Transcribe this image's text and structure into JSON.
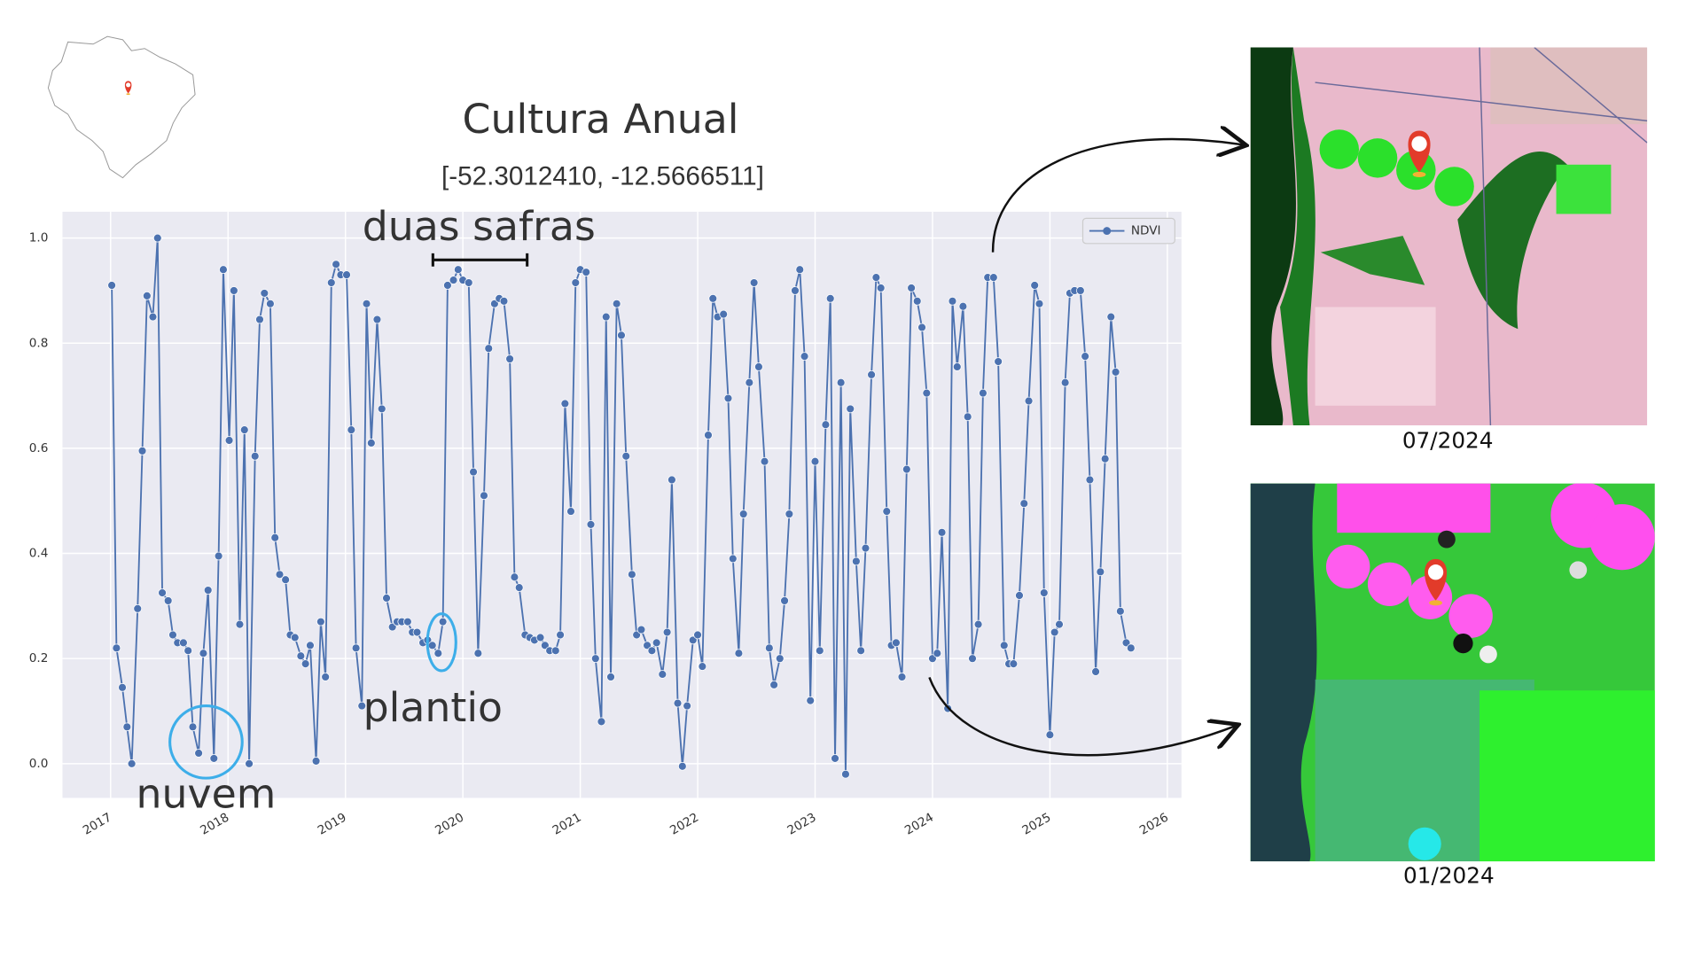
{
  "chart_data": {
    "type": "line",
    "title": "Cultura Anual",
    "subtitle": "[-52.3012410, -12.5666511]",
    "annotations": [
      "duas safras",
      "plantio",
      "nuvem"
    ],
    "image_captions": [
      "07/2024",
      "01/2024"
    ],
    "x": [
      2017.01,
      2017.05,
      2017.1,
      2017.14,
      2017.18,
      2017.23,
      2017.27,
      2017.31,
      2017.36,
      2017.4,
      2017.44,
      2017.49,
      2017.53,
      2017.57,
      2017.62,
      2017.66,
      2017.7,
      2017.75,
      2017.79,
      2017.83,
      2017.88,
      2017.92,
      2017.96,
      2018.01,
      2018.05,
      2018.1,
      2018.14,
      2018.18,
      2018.23,
      2018.27,
      2018.31,
      2018.36,
      2018.4,
      2018.44,
      2018.49,
      2018.53,
      2018.57,
      2018.62,
      2018.66,
      2018.7,
      2018.75,
      2018.79,
      2018.83,
      2018.88,
      2018.92,
      2018.96,
      2019.01,
      2019.05,
      2019.09,
      2019.14,
      2019.18,
      2019.22,
      2019.27,
      2019.31,
      2019.35,
      2019.4,
      2019.44,
      2019.48,
      2019.53,
      2019.57,
      2019.61,
      2019.66,
      2019.7,
      2019.74,
      2019.79,
      2019.83,
      2019.87,
      2019.92,
      2019.96,
      2020.0,
      2020.05,
      2020.09,
      2020.13,
      2020.18,
      2020.22,
      2020.27,
      2020.31,
      2020.35,
      2020.4,
      2020.44,
      2020.48,
      2020.53,
      2020.57,
      2020.61,
      2020.66,
      2020.7,
      2020.74,
      2020.79,
      2020.83,
      2020.87,
      2020.92,
      2020.96,
      2021.0,
      2021.05,
      2021.09,
      2021.13,
      2021.18,
      2021.22,
      2021.26,
      2021.31,
      2021.35,
      2021.39,
      2021.44,
      2021.48,
      2021.52,
      2021.57,
      2021.61,
      2021.65,
      2021.7,
      2021.74,
      2021.78,
      2021.83,
      2021.87,
      2021.91,
      2021.96,
      2022.0,
      2022.04,
      2022.09,
      2022.13,
      2022.17,
      2022.22,
      2022.26,
      2022.3,
      2022.35,
      2022.39,
      2022.44,
      2022.48,
      2022.52,
      2022.57,
      2022.61,
      2022.65,
      2022.7,
      2022.74,
      2022.78,
      2022.83,
      2022.87,
      2022.91,
      2022.96,
      2023.0,
      2023.04,
      2023.09,
      2023.13,
      2023.17,
      2023.22,
      2023.26,
      2023.3,
      2023.35,
      2023.39,
      2023.43,
      2023.48,
      2023.52,
      2023.56,
      2023.61,
      2023.65,
      2023.69,
      2023.74,
      2023.78,
      2023.82,
      2023.87,
      2023.91,
      2023.95,
      2024.0,
      2024.04,
      2024.08,
      2024.13,
      2024.17,
      2024.21,
      2024.26,
      2024.3,
      2024.34,
      2024.39,
      2024.43,
      2024.47,
      2024.52,
      2024.56,
      2024.61,
      2024.65,
      2024.69,
      2024.74,
      2024.78,
      2024.82,
      2024.87,
      2024.91,
      2024.95,
      2025.0,
      2025.04,
      2025.08,
      2025.13,
      2025.17,
      2025.21,
      2025.26,
      2025.3,
      2025.34,
      2025.39,
      2025.43,
      2025.47,
      2025.52,
      2025.56,
      2025.6,
      2025.65,
      2025.69
    ],
    "series": [
      {
        "name": "NDVI",
        "color": "#4c72b0",
        "values": [
          0.91,
          0.22,
          0.145,
          0.07,
          0.0,
          0.295,
          0.595,
          0.89,
          0.85,
          1.0,
          0.325,
          0.31,
          0.245,
          0.23,
          0.23,
          0.215,
          0.07,
          0.02,
          0.21,
          0.33,
          0.01,
          0.395,
          0.94,
          0.615,
          0.9,
          0.265,
          0.635,
          0.0,
          0.585,
          0.845,
          0.895,
          0.875,
          0.43,
          0.36,
          0.35,
          0.245,
          0.24,
          0.205,
          0.19,
          0.225,
          0.005,
          0.27,
          0.165,
          0.915,
          0.95,
          0.93,
          0.93,
          0.635,
          0.22,
          0.11,
          0.875,
          0.61,
          0.845,
          0.675,
          0.315,
          0.26,
          0.27,
          0.27,
          0.27,
          0.25,
          0.25,
          0.23,
          0.235,
          0.225,
          0.21,
          0.27,
          0.91,
          0.92,
          0.94,
          0.92,
          0.915,
          0.555,
          0.21,
          0.51,
          0.79,
          0.875,
          0.885,
          0.88,
          0.77,
          0.355,
          0.335,
          0.245,
          0.24,
          0.235,
          0.24,
          0.225,
          0.215,
          0.215,
          0.245,
          0.685,
          0.48,
          0.915,
          0.94,
          0.935,
          0.455,
          0.2,
          0.08,
          0.85,
          0.165,
          0.875,
          0.815,
          0.585,
          0.36,
          0.245,
          0.255,
          0.225,
          0.215,
          0.23,
          0.17,
          0.25,
          0.54,
          0.115,
          -0.005,
          0.11,
          0.235,
          0.245,
          0.185,
          0.625,
          0.885,
          0.85,
          0.855,
          0.695,
          0.39,
          0.21,
          0.475,
          0.725,
          0.915,
          0.755,
          0.575,
          0.22,
          0.15,
          0.2,
          0.31,
          0.475,
          0.9,
          0.94,
          0.775,
          0.12,
          0.575,
          0.215,
          0.645,
          0.885,
          0.01,
          0.725,
          -0.02,
          0.675,
          0.385,
          0.215,
          0.41,
          0.74,
          0.925,
          0.905,
          0.48,
          0.225,
          0.23,
          0.165,
          0.56,
          0.905,
          0.88,
          0.83,
          0.705,
          0.2,
          0.21,
          0.44,
          0.105,
          0.88,
          0.755,
          0.87,
          0.66,
          0.2,
          0.265,
          0.705,
          0.925,
          0.925,
          0.765,
          0.225,
          0.19,
          0.19,
          0.32,
          0.495,
          0.69,
          0.91,
          0.875,
          0.325,
          0.055,
          0.25,
          0.265,
          0.725,
          0.895,
          0.9,
          0.9,
          0.775,
          0.54,
          0.175,
          0.365,
          0.58,
          0.85,
          0.745,
          0.29,
          0.23,
          0.22
        ]
      }
    ],
    "xlim": [
      2016.59,
      2026.12
    ],
    "ylim": [
      -0.065,
      1.05
    ],
    "xticks": [
      2017,
      2018,
      2019,
      2020,
      2021,
      2022,
      2023,
      2024,
      2025,
      2026
    ],
    "yticks": [
      {
        "value": 0,
        "label": "0.0"
      },
      0.2,
      0.4,
      0.6,
      0.8,
      {
        "value": 1,
        "label": "1.0"
      }
    ],
    "grid": true,
    "legend": "upper right"
  }
}
